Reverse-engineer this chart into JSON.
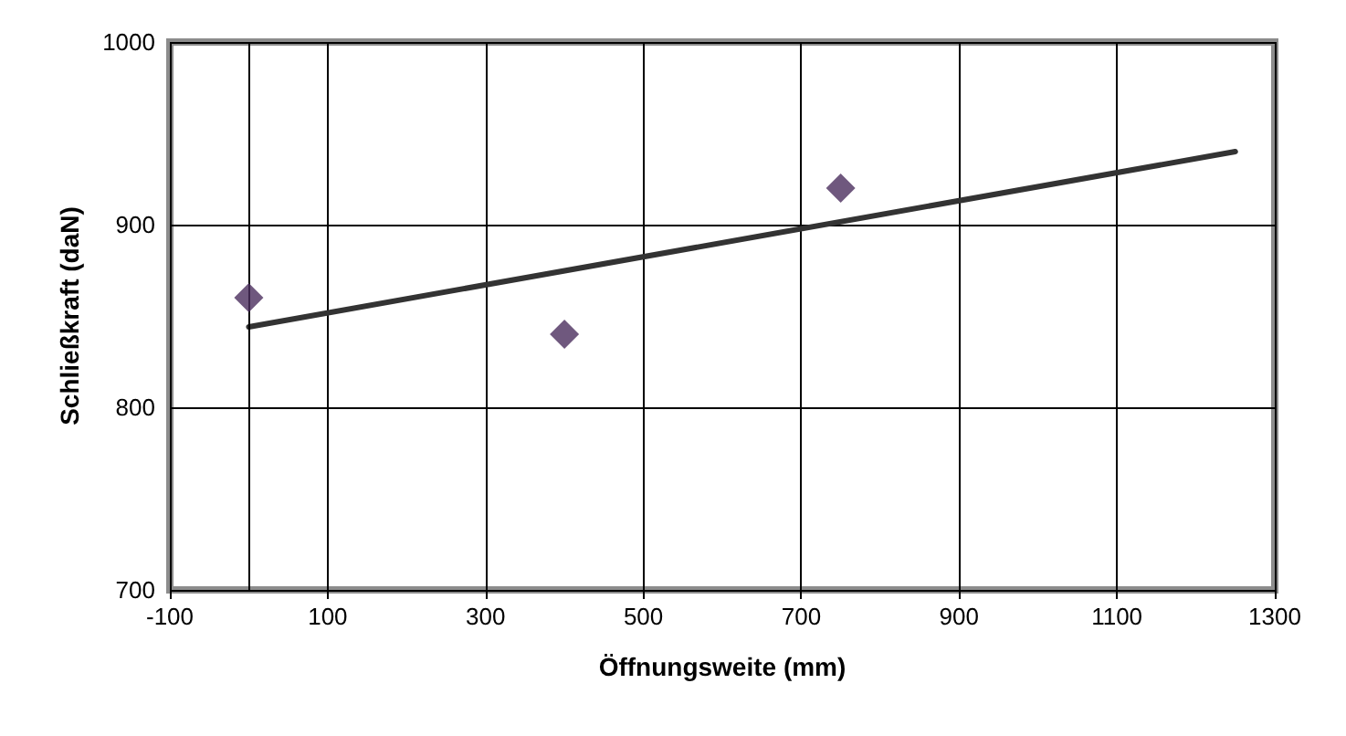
{
  "chart_data": {
    "type": "scatter",
    "xlabel": "Öffnungsweite (mm)",
    "ylabel": "Schließkraft (daN)",
    "xlim": [
      -100,
      1300
    ],
    "xticks": [
      -100,
      100,
      300,
      500,
      700,
      900,
      1100,
      1300
    ],
    "ylim": [
      700,
      1000
    ],
    "yticks": [
      700,
      800,
      900,
      1000
    ],
    "grid": true,
    "ref_lines": [
      {
        "axis": "x",
        "value": 0,
        "color": "#000000"
      }
    ],
    "series": [
      {
        "color": "#4b2e5e",
        "marker": "diamond",
        "x": [
          0,
          400,
          750
        ],
        "values": [
          860,
          840,
          920
        ]
      },
      {
        "type": "line",
        "color": "#333333",
        "marker": "none",
        "x": [
          0,
          1250
        ],
        "values": [
          844,
          940
        ]
      }
    ]
  }
}
